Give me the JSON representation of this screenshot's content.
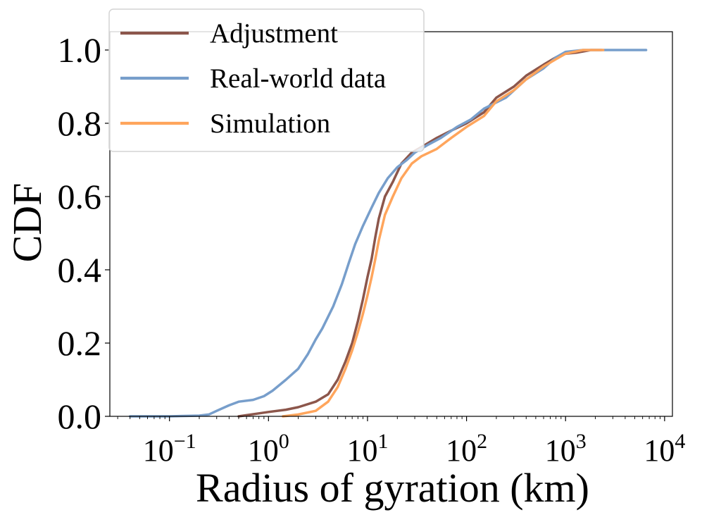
{
  "chart_data": {
    "type": "line",
    "x_scale": "log",
    "xlabel": "Radius of gyration (km)",
    "ylabel": "CDF",
    "xlim": [
      0.025,
      12000
    ],
    "ylim": [
      0.0,
      1.05
    ],
    "x_ticks": [
      {
        "value": 0.1,
        "base": "10",
        "exp": "−1"
      },
      {
        "value": 1,
        "base": "10",
        "exp": "0"
      },
      {
        "value": 10,
        "base": "10",
        "exp": "1"
      },
      {
        "value": 100,
        "base": "10",
        "exp": "2"
      },
      {
        "value": 1000,
        "base": "10",
        "exp": "3"
      },
      {
        "value": 10000,
        "base": "10",
        "exp": "4"
      }
    ],
    "y_ticks": [
      {
        "value": 0.0,
        "label": "0.0"
      },
      {
        "value": 0.2,
        "label": "0.2"
      },
      {
        "value": 0.4,
        "label": "0.4"
      },
      {
        "value": 0.6,
        "label": "0.6"
      },
      {
        "value": 0.8,
        "label": "0.8"
      },
      {
        "value": 1.0,
        "label": "1.0"
      }
    ],
    "legend_position": "top-left",
    "series": [
      {
        "name": "Adjustment",
        "color": "#8c564b",
        "points": [
          [
            0.5,
            0.0
          ],
          [
            0.6,
            0.003
          ],
          [
            0.8,
            0.008
          ],
          [
            1.0,
            0.012
          ],
          [
            1.5,
            0.018
          ],
          [
            2.0,
            0.025
          ],
          [
            3.0,
            0.04
          ],
          [
            4.0,
            0.06
          ],
          [
            5.0,
            0.1
          ],
          [
            6.0,
            0.15
          ],
          [
            7.0,
            0.2
          ],
          [
            8.0,
            0.26
          ],
          [
            9.0,
            0.32
          ],
          [
            10.0,
            0.38
          ],
          [
            11.0,
            0.43
          ],
          [
            12.0,
            0.49
          ],
          [
            13.0,
            0.54
          ],
          [
            15.0,
            0.6
          ],
          [
            18.0,
            0.64
          ],
          [
            22.0,
            0.69
          ],
          [
            28.0,
            0.72
          ],
          [
            35.0,
            0.735
          ],
          [
            50.0,
            0.76
          ],
          [
            70.0,
            0.78
          ],
          [
            100.0,
            0.8
          ],
          [
            150.0,
            0.83
          ],
          [
            200.0,
            0.87
          ],
          [
            300.0,
            0.9
          ],
          [
            400.0,
            0.93
          ],
          [
            600.0,
            0.96
          ],
          [
            800.0,
            0.98
          ],
          [
            1000.0,
            0.99
          ],
          [
            1300.0,
            0.993
          ],
          [
            1800.0,
            1.0
          ],
          [
            2300.0,
            1.0
          ]
        ]
      },
      {
        "name": "Real-world data",
        "color": "#779ecb",
        "points": [
          [
            0.04,
            0.0
          ],
          [
            0.1,
            0.0
          ],
          [
            0.2,
            0.002
          ],
          [
            0.25,
            0.005
          ],
          [
            0.3,
            0.015
          ],
          [
            0.4,
            0.03
          ],
          [
            0.5,
            0.04
          ],
          [
            0.7,
            0.045
          ],
          [
            0.9,
            0.055
          ],
          [
            1.1,
            0.07
          ],
          [
            1.5,
            0.1
          ],
          [
            2.0,
            0.13
          ],
          [
            2.5,
            0.17
          ],
          [
            3.0,
            0.21
          ],
          [
            3.5,
            0.24
          ],
          [
            4.5,
            0.3
          ],
          [
            5.5,
            0.36
          ],
          [
            6.5,
            0.42
          ],
          [
            7.5,
            0.47
          ],
          [
            9.0,
            0.52
          ],
          [
            11.0,
            0.57
          ],
          [
            13.0,
            0.61
          ],
          [
            16.0,
            0.65
          ],
          [
            20.0,
            0.68
          ],
          [
            25.0,
            0.7
          ],
          [
            30.0,
            0.72
          ],
          [
            40.0,
            0.74
          ],
          [
            55.0,
            0.76
          ],
          [
            80.0,
            0.79
          ],
          [
            110.0,
            0.81
          ],
          [
            150.0,
            0.84
          ],
          [
            250.0,
            0.87
          ],
          [
            400.0,
            0.92
          ],
          [
            600.0,
            0.95
          ],
          [
            800.0,
            0.98
          ],
          [
            1000.0,
            0.995
          ],
          [
            1500.0,
            1.0
          ],
          [
            6500.0,
            1.0
          ]
        ]
      },
      {
        "name": "Simulation",
        "color": "#ffa55c",
        "points": [
          [
            1.4,
            0.0
          ],
          [
            2.0,
            0.005
          ],
          [
            3.0,
            0.015
          ],
          [
            4.0,
            0.04
          ],
          [
            5.0,
            0.08
          ],
          [
            6.0,
            0.13
          ],
          [
            7.0,
            0.18
          ],
          [
            8.0,
            0.23
          ],
          [
            9.0,
            0.28
          ],
          [
            10.0,
            0.33
          ],
          [
            11.0,
            0.38
          ],
          [
            12.0,
            0.43
          ],
          [
            13.0,
            0.48
          ],
          [
            15.0,
            0.55
          ],
          [
            18.0,
            0.6
          ],
          [
            22.0,
            0.65
          ],
          [
            28.0,
            0.69
          ],
          [
            35.0,
            0.71
          ],
          [
            50.0,
            0.73
          ],
          [
            70.0,
            0.76
          ],
          [
            100.0,
            0.79
          ],
          [
            150.0,
            0.82
          ],
          [
            200.0,
            0.86
          ],
          [
            300.0,
            0.89
          ],
          [
            400.0,
            0.92
          ],
          [
            600.0,
            0.955
          ],
          [
            800.0,
            0.975
          ],
          [
            1000.0,
            0.99
          ],
          [
            1500.0,
            1.0
          ],
          [
            2400.0,
            1.0
          ]
        ]
      }
    ]
  }
}
